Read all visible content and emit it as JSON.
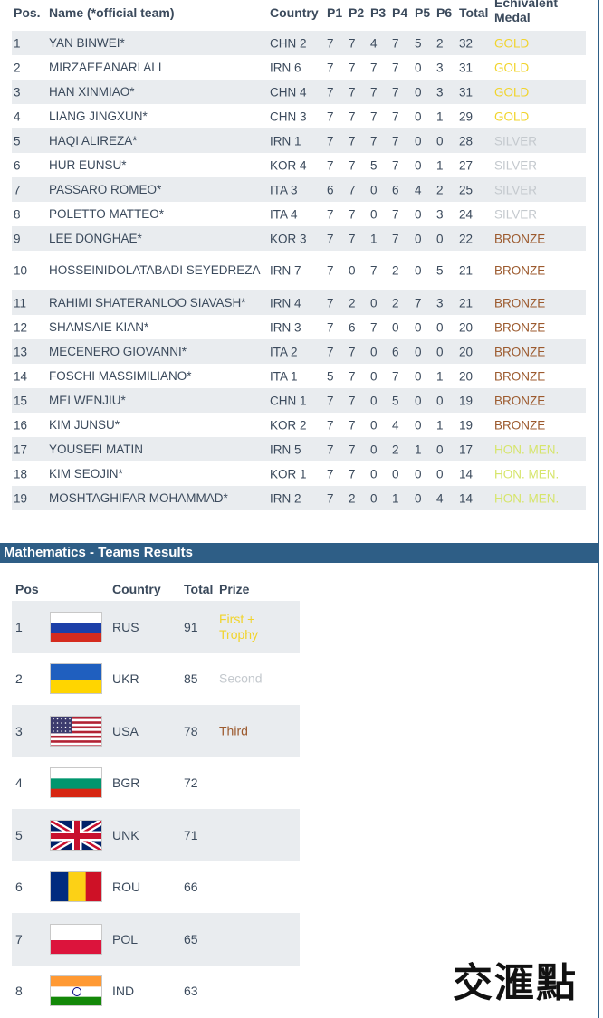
{
  "individual": {
    "headers": {
      "pos": "Pos.",
      "name": "Name (*official team)",
      "country": "Country",
      "p1": "P1",
      "p2": "P2",
      "p3": "P3",
      "p4": "P4",
      "p5": "P5",
      "p6": "P6",
      "total": "Total",
      "medal": "Echivalent Medal"
    },
    "medal_colors": {
      "GOLD": "#f1d42b",
      "SILVER": "#c4c9ce",
      "BRONZE": "#9c5a2e",
      "HON. MEN.": "#d6e56b"
    },
    "rows": [
      {
        "pos": "1",
        "name": "YAN BINWEI*",
        "country": "CHN 2",
        "p1": "7",
        "p2": "7",
        "p3": "4",
        "p4": "7",
        "p5": "5",
        "p6": "2",
        "total": "32",
        "medal": "GOLD"
      },
      {
        "pos": "2",
        "name": "MIRZAEEANARI ALI",
        "country": "IRN 6",
        "p1": "7",
        "p2": "7",
        "p3": "7",
        "p4": "7",
        "p5": "0",
        "p6": "3",
        "total": "31",
        "medal": "GOLD"
      },
      {
        "pos": "3",
        "name": "HAN XINMIAO*",
        "country": "CHN 4",
        "p1": "7",
        "p2": "7",
        "p3": "7",
        "p4": "7",
        "p5": "0",
        "p6": "3",
        "total": "31",
        "medal": "GOLD"
      },
      {
        "pos": "4",
        "name": "LIANG JINGXUN*",
        "country": "CHN 3",
        "p1": "7",
        "p2": "7",
        "p3": "7",
        "p4": "7",
        "p5": "0",
        "p6": "1",
        "total": "29",
        "medal": "GOLD"
      },
      {
        "pos": "5",
        "name": "HAQI ALIREZA*",
        "country": "IRN 1",
        "p1": "7",
        "p2": "7",
        "p3": "7",
        "p4": "7",
        "p5": "0",
        "p6": "0",
        "total": "28",
        "medal": "SILVER"
      },
      {
        "pos": "6",
        "name": "HUR EUNSU*",
        "country": "KOR 4",
        "p1": "7",
        "p2": "7",
        "p3": "5",
        "p4": "7",
        "p5": "0",
        "p6": "1",
        "total": "27",
        "medal": "SILVER"
      },
      {
        "pos": "7",
        "name": "PASSARO ROMEO*",
        "country": "ITA 3",
        "p1": "6",
        "p2": "7",
        "p3": "0",
        "p4": "6",
        "p5": "4",
        "p6": "2",
        "total": "25",
        "medal": "SILVER"
      },
      {
        "pos": "8",
        "name": "POLETTO MATTEO*",
        "country": "ITA 4",
        "p1": "7",
        "p2": "7",
        "p3": "0",
        "p4": "7",
        "p5": "0",
        "p6": "3",
        "total": "24",
        "medal": "SILVER"
      },
      {
        "pos": "9",
        "name": "LEE DONGHAE*",
        "country": "KOR 3",
        "p1": "7",
        "p2": "7",
        "p3": "1",
        "p4": "7",
        "p5": "0",
        "p6": "0",
        "total": "22",
        "medal": "BRONZE"
      },
      {
        "pos": "10",
        "name": "HOSSEINIDOLATABADI SEYEDREZA",
        "country": "IRN 7",
        "p1": "7",
        "p2": "0",
        "p3": "7",
        "p4": "2",
        "p5": "0",
        "p6": "5",
        "total": "21",
        "medal": "BRONZE",
        "tall": true
      },
      {
        "pos": "11",
        "name": "RAHIMI SHATERANLOO SIAVASH*",
        "country": "IRN 4",
        "p1": "7",
        "p2": "2",
        "p3": "0",
        "p4": "2",
        "p5": "7",
        "p6": "3",
        "total": "21",
        "medal": "BRONZE"
      },
      {
        "pos": "12",
        "name": "SHAMSAIE KIAN*",
        "country": "IRN 3",
        "p1": "7",
        "p2": "6",
        "p3": "7",
        "p4": "0",
        "p5": "0",
        "p6": "0",
        "total": "20",
        "medal": "BRONZE"
      },
      {
        "pos": "13",
        "name": "MECENERO GIOVANNI*",
        "country": "ITA 2",
        "p1": "7",
        "p2": "7",
        "p3": "0",
        "p4": "6",
        "p5": "0",
        "p6": "0",
        "total": "20",
        "medal": "BRONZE"
      },
      {
        "pos": "14",
        "name": "FOSCHI MASSIMILIANO*",
        "country": "ITA 1",
        "p1": "5",
        "p2": "7",
        "p3": "0",
        "p4": "7",
        "p5": "0",
        "p6": "1",
        "total": "20",
        "medal": "BRONZE"
      },
      {
        "pos": "15",
        "name": "MEI WENJIU*",
        "country": "CHN 1",
        "p1": "7",
        "p2": "7",
        "p3": "0",
        "p4": "5",
        "p5": "0",
        "p6": "0",
        "total": "19",
        "medal": "BRONZE"
      },
      {
        "pos": "16",
        "name": "KIM JUNSU*",
        "country": "KOR 2",
        "p1": "7",
        "p2": "7",
        "p3": "0",
        "p4": "4",
        "p5": "0",
        "p6": "1",
        "total": "19",
        "medal": "BRONZE"
      },
      {
        "pos": "17",
        "name": "YOUSEFI MATIN",
        "country": "IRN 5",
        "p1": "7",
        "p2": "7",
        "p3": "0",
        "p4": "2",
        "p5": "1",
        "p6": "0",
        "total": "17",
        "medal": "HON. MEN."
      },
      {
        "pos": "18",
        "name": "KIM SEOJIN*",
        "country": "KOR 1",
        "p1": "7",
        "p2": "7",
        "p3": "0",
        "p4": "0",
        "p5": "0",
        "p6": "0",
        "total": "14",
        "medal": "HON. MEN."
      },
      {
        "pos": "19",
        "name": "MOSHTAGHIFAR MOHAMMAD*",
        "country": "IRN 2",
        "p1": "7",
        "p2": "2",
        "p3": "0",
        "p4": "1",
        "p5": "0",
        "p6": "4",
        "total": "14",
        "medal": "HON. MEN."
      }
    ]
  },
  "teams": {
    "section_title": "Mathematics - Teams Results",
    "headers": {
      "pos": "Pos",
      "country": "Country",
      "total": "Total",
      "prize": "Prize"
    },
    "prize_colors": {
      "first": "#f1d42b",
      "second": "#c4c9ce",
      "third": "#9c5a2e"
    },
    "rows": [
      {
        "pos": "1",
        "country": "RUS",
        "flag": "flag-russia-icon",
        "total": "91",
        "prize": "First + Trophy",
        "prize_type": "first"
      },
      {
        "pos": "2",
        "country": "UKR",
        "flag": "flag-ukraine-icon",
        "total": "85",
        "prize": "Second",
        "prize_type": "second"
      },
      {
        "pos": "3",
        "country": "USA",
        "flag": "flag-usa-icon",
        "total": "78",
        "prize": "Third",
        "prize_type": "third"
      },
      {
        "pos": "4",
        "country": "BGR",
        "flag": "flag-bulgaria-icon",
        "total": "72",
        "prize": "",
        "prize_type": ""
      },
      {
        "pos": "5",
        "country": "UNK",
        "flag": "flag-uk-icon",
        "total": "71",
        "prize": "",
        "prize_type": ""
      },
      {
        "pos": "6",
        "country": "ROU",
        "flag": "flag-romania-icon",
        "total": "66",
        "prize": "",
        "prize_type": ""
      },
      {
        "pos": "7",
        "country": "POL",
        "flag": "flag-poland-icon",
        "total": "65",
        "prize": "",
        "prize_type": ""
      },
      {
        "pos": "8",
        "country": "IND",
        "flag": "flag-india-icon",
        "total": "63",
        "prize": "",
        "prize_type": ""
      }
    ]
  },
  "watermark": {
    "text": "交滙點"
  }
}
